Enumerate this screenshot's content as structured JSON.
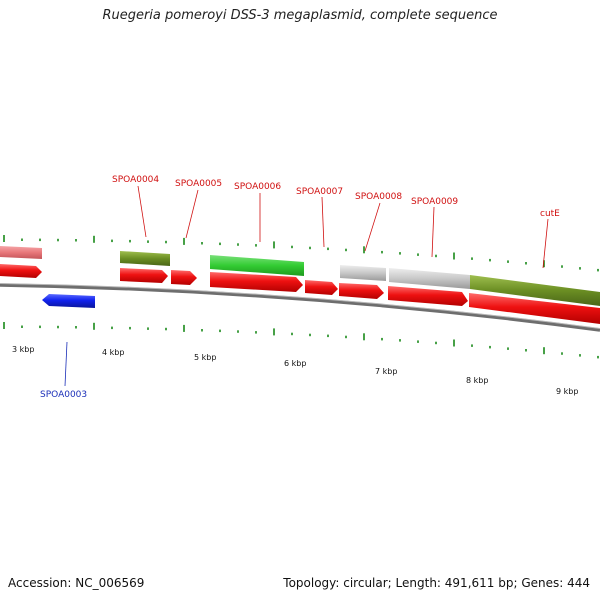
{
  "title": "Ruegeria pomeroyi DSS-3 megaplasmid, complete sequence",
  "footer": {
    "accession": "Accession: NC_006569",
    "summary": "Topology: circular; Length: 491,611 bp; Genes: 444"
  },
  "scale_labels": [
    "3 kbp",
    "4 kbp",
    "5 kbp",
    "6 kbp",
    "7 kbp",
    "8 kbp",
    "9 kbp"
  ],
  "gene_labels": [
    "SPOA0004",
    "SPOA0005",
    "SPOA0006",
    "SPOA0007",
    "SPOA0008",
    "SPOA0009",
    "cutE",
    "SPOA0003"
  ],
  "colors": {
    "cds": "#ee1111",
    "reverse_cds": "#1122ee",
    "cog_olive": "#6b8e23",
    "cog_green": "#33cc33",
    "cog_grey": "#c8c8c8",
    "cog_pink": "#e8777a",
    "backbone": "#808080",
    "tick": "#1a8a1a"
  }
}
